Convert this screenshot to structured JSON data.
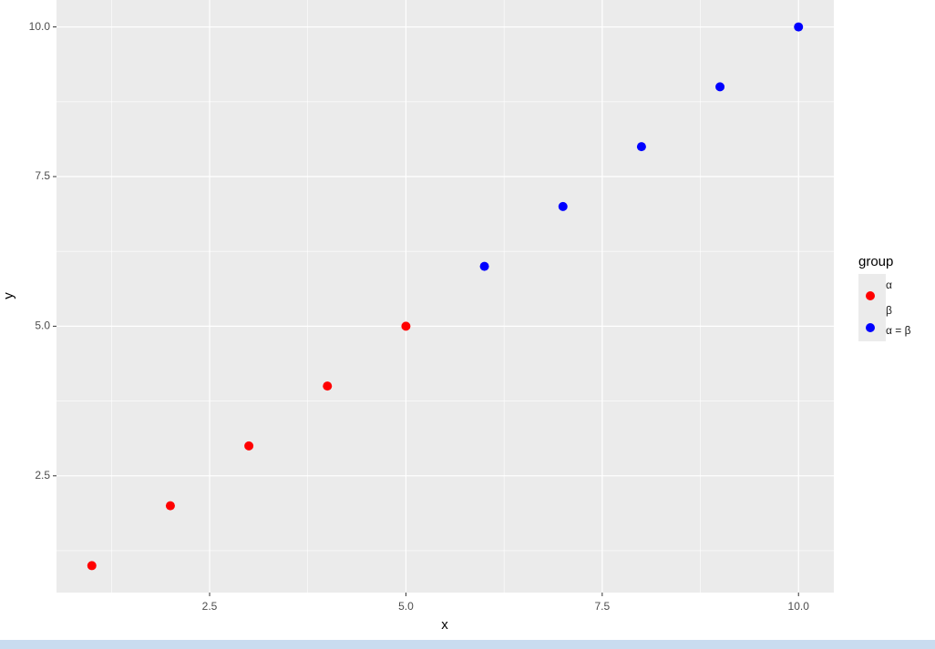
{
  "chart_data": {
    "type": "scatter",
    "x_label": "x",
    "y_label": "y",
    "legend_title": "group",
    "legend_position": "right",
    "series": [
      {
        "name": "α\nβ",
        "color": "#ff0000",
        "x": [
          1,
          2,
          3,
          4,
          5
        ],
        "values": [
          1,
          2,
          3,
          4,
          5
        ]
      },
      {
        "name": "α = β",
        "color": "#0000ff",
        "x": [
          6,
          7,
          8,
          9,
          10
        ],
        "values": [
          6,
          7,
          8,
          9,
          10
        ]
      }
    ],
    "xlim": [
      0.55,
      10.45
    ],
    "ylim": [
      0.55,
      10.45
    ],
    "xticks": [
      2.5,
      {
        "value": 5,
        "label": "5.0"
      },
      7.5,
      {
        "value": 10,
        "label": "10.0"
      }
    ],
    "yticks": [
      2.5,
      {
        "value": 5,
        "label": "5.0"
      },
      7.5,
      {
        "value": 10,
        "label": "10.0"
      }
    ],
    "x_minor_grid": [
      1.25,
      3.75,
      6.25,
      8.75
    ],
    "y_minor_grid": [
      1.25,
      3.75,
      6.25,
      8.75
    ],
    "grid": true
  }
}
